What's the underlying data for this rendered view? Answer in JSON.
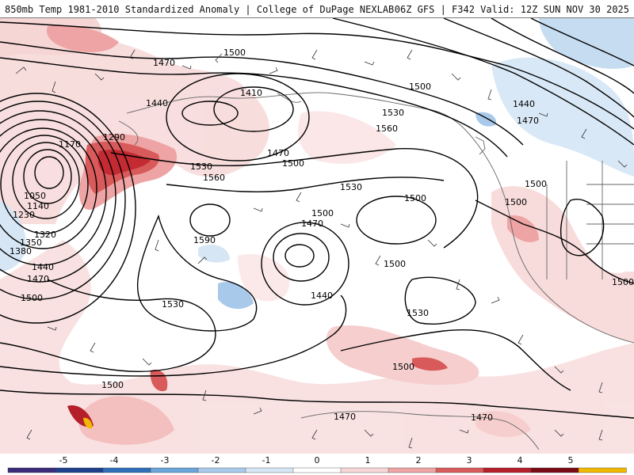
{
  "header": {
    "left_text": "850mb Temp 1981-2010 Standardized Anomaly | College of DuPage NEXLAB",
    "right_text": "06Z GFS | F342 Valid: 12Z SUN NOV 30 2025"
  },
  "colorbar": {
    "ticks": [
      "-5",
      "-4",
      "-3",
      "-2",
      "-1",
      "0",
      "1",
      "2",
      "3",
      "4",
      "5"
    ],
    "colors": [
      "#3b2b7a",
      "#1f3f8c",
      "#2f6fb8",
      "#6aa4d8",
      "#a9c9ea",
      "#d6e6f5",
      "#ffffff",
      "#f6d6d6",
      "#eea4a4",
      "#d85a5a",
      "#b51f2a",
      "#7a0a14",
      "#f0b800"
    ]
  },
  "map": {
    "contour_labels": [
      {
        "text": "1500"
      },
      {
        "text": "1470"
      },
      {
        "text": "1440"
      },
      {
        "text": "1410"
      },
      {
        "text": "1470"
      },
      {
        "text": "1500"
      },
      {
        "text": "1290"
      },
      {
        "text": "1170"
      },
      {
        "text": "1050"
      },
      {
        "text": "1140"
      },
      {
        "text": "1230"
      },
      {
        "text": "1320"
      },
      {
        "text": "1350"
      },
      {
        "text": "1380"
      },
      {
        "text": "1440"
      },
      {
        "text": "1470"
      },
      {
        "text": "1500"
      },
      {
        "text": "1530"
      },
      {
        "text": "1560"
      },
      {
        "text": "1590"
      },
      {
        "text": "1530"
      },
      {
        "text": "1500"
      },
      {
        "text": "1470"
      },
      {
        "text": "1500"
      },
      {
        "text": "1440"
      },
      {
        "text": "1500"
      },
      {
        "text": "1530"
      },
      {
        "text": "1560"
      },
      {
        "text": "1530"
      },
      {
        "text": "1500"
      },
      {
        "text": "1500"
      },
      {
        "text": "1440"
      },
      {
        "text": "1470"
      },
      {
        "text": "1500"
      },
      {
        "text": "1530"
      },
      {
        "text": "1500"
      },
      {
        "text": "1500"
      },
      {
        "text": "1470"
      },
      {
        "text": "1470"
      },
      {
        "text": "1500"
      }
    ]
  }
}
